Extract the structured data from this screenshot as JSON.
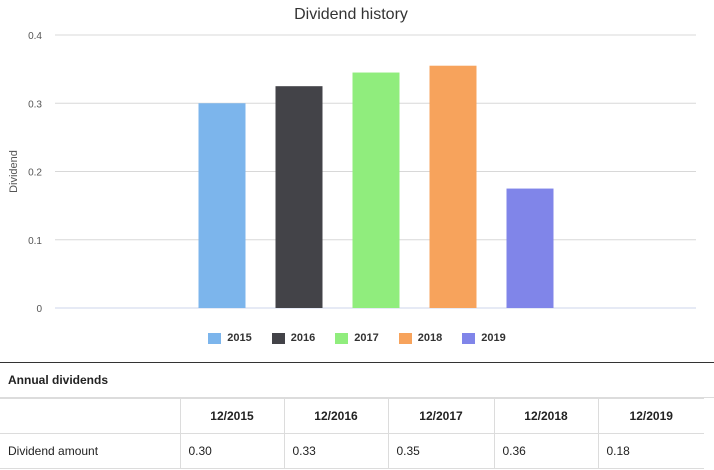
{
  "chart_data": {
    "type": "bar",
    "title": "Dividend history",
    "ylabel": "Dividend",
    "xlabel": "",
    "ylim": [
      0,
      0.4
    ],
    "yticks": [
      "0",
      "0.1",
      "0.2",
      "0.3",
      "0.4"
    ],
    "grid": true,
    "legend_position": "bottom",
    "categories": [
      "2015",
      "2016",
      "2017",
      "2018",
      "2019"
    ],
    "values": [
      0.3,
      0.325,
      0.345,
      0.355,
      0.175
    ],
    "colors": [
      "#7cb5ec",
      "#434348",
      "#90ed7d",
      "#f7a35c",
      "#8085e9"
    ]
  },
  "table": {
    "title": "Annual dividends",
    "columns": [
      "",
      "12/2015",
      "12/2016",
      "12/2017",
      "12/2018",
      "12/2019"
    ],
    "rows": [
      {
        "label": "Dividend amount",
        "values": [
          "0.30",
          "0.33",
          "0.35",
          "0.36",
          "0.18"
        ]
      }
    ]
  }
}
